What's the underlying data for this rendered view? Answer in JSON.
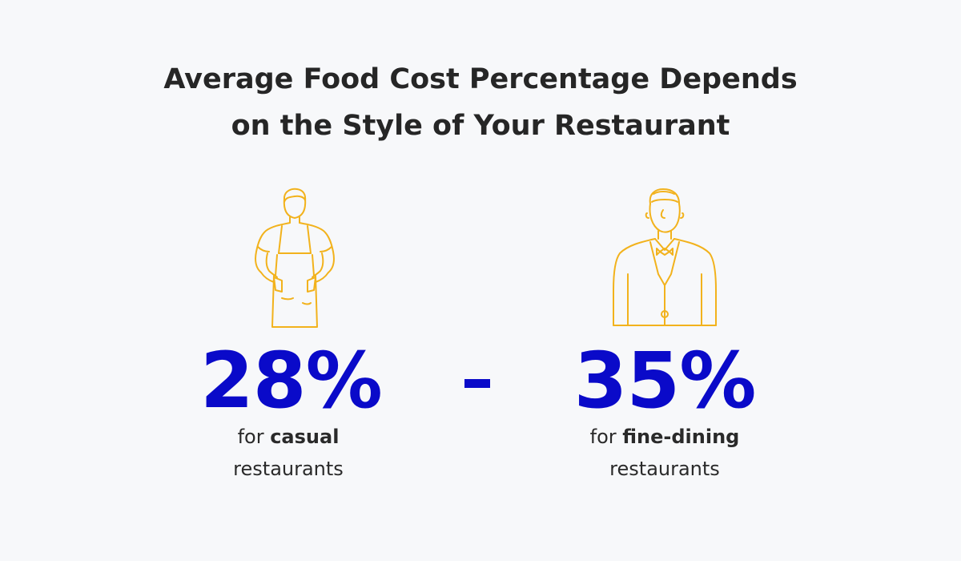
{
  "title": {
    "line1": "Average Food Cost Percentage Depends",
    "line2": "on the Style of Your Restaurant"
  },
  "separator": "-",
  "casual": {
    "icon": "waiter-apron-icon",
    "percentage": "28%",
    "caption_prefix": "for",
    "caption_bold": "casual",
    "caption_line2": "restaurants"
  },
  "fine_dining": {
    "icon": "formal-waiter-icon",
    "percentage": "35%",
    "caption_prefix": "for",
    "caption_bold": "fine-dining",
    "caption_line2": "restaurants"
  },
  "colors": {
    "accent": "#0a0ac9",
    "illustration": "#f2b21c",
    "background": "#f7f8fa",
    "text": "#262626"
  }
}
